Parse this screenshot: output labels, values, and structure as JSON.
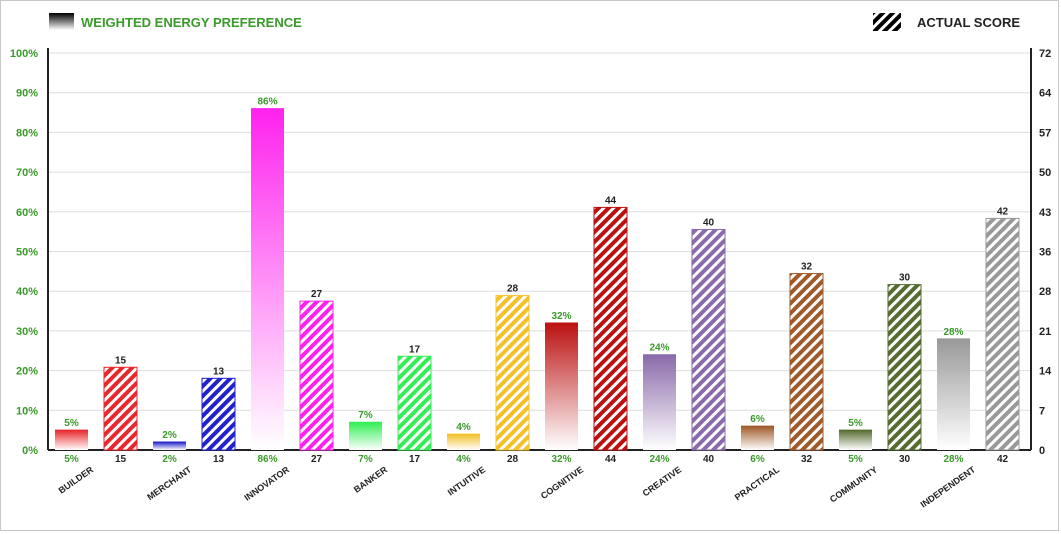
{
  "legend": {
    "weighted_label": "WEIGHTED ENERGY PREFERENCE",
    "actual_label": "ACTUAL SCORE"
  },
  "colors": {
    "weighted_text": "#3a9a2a",
    "actual_text": "#222222",
    "grid": "#dddddd",
    "axis": "#222222"
  },
  "chart_data": {
    "type": "bar",
    "left_axis": {
      "ylim": [
        0,
        100
      ],
      "ticks": [
        "0%",
        "10%",
        "20%",
        "30%",
        "40%",
        "50%",
        "60%",
        "70%",
        "80%",
        "90%",
        "100%"
      ]
    },
    "right_axis": {
      "ylim": [
        0,
        72
      ],
      "ticks": [
        "0",
        "7",
        "14",
        "21",
        "28",
        "36",
        "43",
        "50",
        "57",
        "64",
        "72"
      ]
    },
    "grid": true,
    "legend_position": "top",
    "categories": [
      "BUILDER",
      "MERCHANT",
      "INNOVATOR",
      "BANKER",
      "INTUITIVE",
      "COGNITIVE",
      "CREATIVE",
      "PRACTICAL",
      "COMMUNITY",
      "INDEPENDENT"
    ],
    "series": [
      {
        "name": "WEIGHTED ENERGY PREFERENCE",
        "axis": "left",
        "values": [
          5,
          2,
          86,
          7,
          4,
          32,
          24,
          6,
          5,
          28
        ],
        "labels": [
          "5%",
          "2%",
          "86%",
          "7%",
          "4%",
          "32%",
          "24%",
          "6%",
          "5%",
          "28%"
        ]
      },
      {
        "name": "ACTUAL SCORE",
        "axis": "right",
        "values": [
          15,
          13,
          27,
          17,
          28,
          44,
          40,
          32,
          30,
          42
        ],
        "labels": [
          "15",
          "13",
          "27",
          "17",
          "28",
          "44",
          "40",
          "32",
          "30",
          "42"
        ]
      }
    ],
    "category_colors": [
      "#e8282c",
      "#2222cc",
      "#ff22ee",
      "#33ee55",
      "#f5c027",
      "#bb1111",
      "#8a6aaa",
      "#a05a2a",
      "#556b2f",
      "#999999"
    ]
  }
}
